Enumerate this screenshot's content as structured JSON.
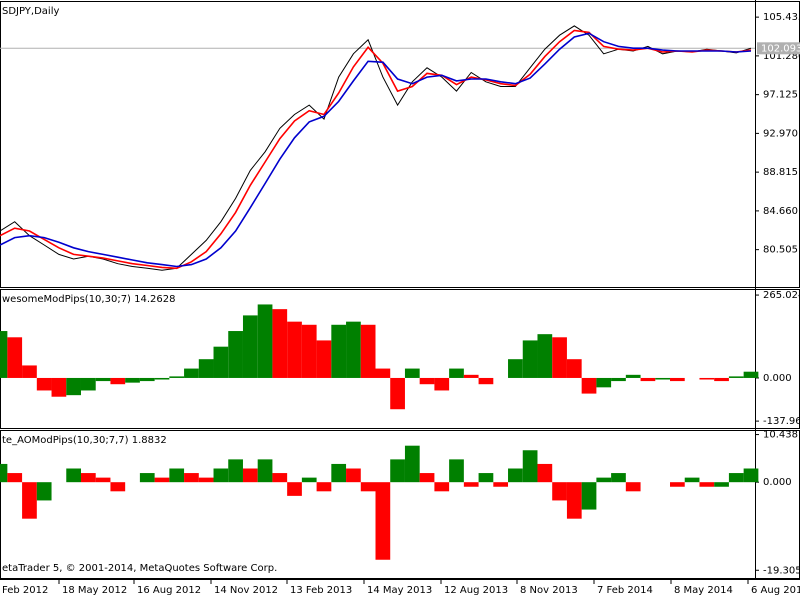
{
  "chart_data": [
    {
      "type": "line",
      "title": "SDJPY,Daily",
      "series": [
        {
          "color": "#000000",
          "values": [
            82.5,
            83.5,
            82,
            81,
            80,
            79.5,
            79.8,
            79.5,
            79,
            78.7,
            78.5,
            78.3,
            78.5,
            80,
            81.5,
            83.5,
            86,
            89,
            91,
            93.5,
            95,
            96,
            94.5,
            99,
            101.5,
            103,
            99,
            96,
            98.5,
            100,
            99,
            97.5,
            99.5,
            98.5,
            98,
            98,
            100,
            102,
            103.5,
            104.5,
            103.5,
            101.5,
            102,
            101.8,
            102.3,
            101.5,
            101.8,
            101.7,
            102,
            101.8,
            101.6,
            102.1
          ]
        },
        {
          "color": "#ff0000",
          "values": [
            82,
            82.8,
            82.5,
            81.6,
            80.7,
            80,
            79.8,
            79.6,
            79.3,
            79,
            78.8,
            78.6,
            78.5,
            79.2,
            80.3,
            82.2,
            84.5,
            87.4,
            89.9,
            92.4,
            94.3,
            95.4,
            95,
            97.3,
            100.1,
            102.2,
            100.5,
            97.5,
            98,
            99.4,
            99.2,
            98.2,
            99,
            98.7,
            98.3,
            98.1,
            99.3,
            101.2,
            102.8,
            104,
            103.8,
            102.3,
            102,
            101.9,
            102.1,
            101.7,
            101.8,
            101.7,
            101.9,
            101.8,
            101.7,
            101.9
          ]
        },
        {
          "color": "#0000cd",
          "values": [
            81,
            81.8,
            82,
            81.8,
            81.3,
            80.7,
            80.3,
            80,
            79.7,
            79.4,
            79.1,
            78.9,
            78.7,
            78.9,
            79.5,
            80.7,
            82.5,
            85,
            87.6,
            90.2,
            92.5,
            94.2,
            94.8,
            96.4,
            98.6,
            100.7,
            100.6,
            98.8,
            98.3,
            99,
            99.2,
            98.6,
            98.8,
            98.8,
            98.5,
            98.3,
            98.9,
            100.4,
            102,
            103.3,
            103.7,
            102.8,
            102.3,
            102.1,
            102.1,
            101.9,
            101.8,
            101.8,
            101.8,
            101.8,
            101.7,
            101.8
          ]
        }
      ],
      "last_price": 102.093,
      "ylim": [
        76.5,
        106.95
      ],
      "yticks": [
        80.505,
        {
          "value": 84.66,
          "label": "84.660"
        },
        88.815,
        {
          "value": 92.97,
          "label": "92.970"
        },
        97.125,
        {
          "value": 101.28,
          "label": "101.280"
        },
        105.435
      ]
    },
    {
      "type": "bar",
      "title": "wesomeModPips(10,30;7) 14.2628",
      "up_color": "#008000",
      "down_color": "#ff0000",
      "values": [
        150,
        130,
        40,
        -40,
        -60,
        -55,
        -40,
        -10,
        -20,
        -15,
        -10,
        -5,
        5,
        30,
        60,
        100,
        150,
        200,
        235,
        220,
        180,
        170,
        120,
        170,
        180,
        170,
        30,
        -100,
        30,
        -20,
        -40,
        30,
        10,
        -20,
        0,
        60,
        120,
        140,
        130,
        60,
        -50,
        -30,
        -10,
        10,
        -10,
        -5,
        -10,
        0,
        -5,
        -10,
        5,
        20
      ],
      "ylim": [
        -160,
        278
      ],
      "yticks": [
        -137.96,
        {
          "value": 0,
          "label": "0.000"
        },
        265.024
      ]
    },
    {
      "type": "bar",
      "title": "te_AOModPips(10,30;7,7) 1.8832",
      "up_color": "#008000",
      "down_color": "#ff0000",
      "values": [
        4,
        2,
        -8,
        -4,
        0,
        3,
        2,
        1,
        -2,
        0,
        2,
        1,
        3,
        2,
        1,
        3,
        5,
        3,
        5,
        2,
        -3,
        1,
        -2,
        4,
        3,
        -2,
        -17,
        5,
        8,
        2,
        -2,
        5,
        -1,
        2,
        -1,
        3,
        7,
        4,
        -4,
        -8,
        -6,
        1,
        2,
        -2,
        0,
        0,
        -1,
        1,
        -1,
        -1,
        2,
        3
      ],
      "ylim": [
        -21,
        11
      ],
      "yticks": [
        -19.305,
        {
          "value": 0,
          "label": "0.000"
        },
        10.438
      ]
    }
  ],
  "x_labels": [
    "Feb 2012",
    "18 May 2012",
    "16 Aug 2012",
    "14 Nov 2012",
    "13 Feb 2013",
    "14 May 2013",
    "12 Aug 2013",
    "8 Nov 2013",
    "7 Feb 2014",
    "8 May 2014",
    "6 Aug 201"
  ],
  "footer": "etaTrader 5, © 2001-2014, MetaQuotes Software Corp."
}
